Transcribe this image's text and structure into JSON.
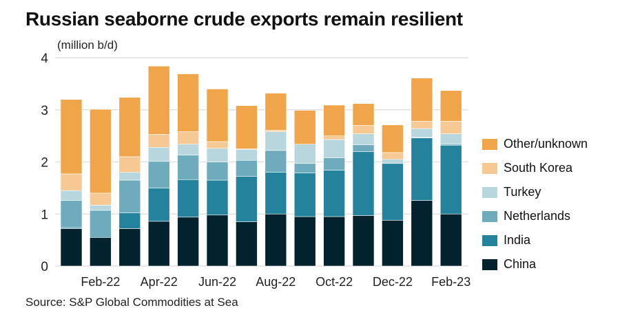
{
  "chart_data": {
    "type": "bar",
    "stacked": true,
    "title": "Russian seaborne crude exports remain resilient",
    "ylabel": "(million b/d)",
    "source": "Source: S&P Global Commodities at Sea",
    "ylim": [
      0,
      4
    ],
    "yticks": [
      "0",
      "1",
      "2",
      "3",
      "4"
    ],
    "categories": [
      "Jan-22",
      "Feb-22",
      "Mar-22",
      "Apr-22",
      "May-22",
      "Jun-22",
      "Jul-22",
      "Aug-22",
      "Sep-22",
      "Oct-22",
      "Nov-22",
      "Dec-22",
      "Jan-23",
      "Feb-23"
    ],
    "xtick_labels": {
      "1": "Feb-22",
      "3": "Apr-22",
      "5": "Jun-22",
      "7": "Aug-22",
      "9": "Oct-22",
      "11": "Dec-22",
      "13": "Feb-23"
    },
    "legend_position": "right",
    "series": [
      {
        "name": "China",
        "color": "#02232e",
        "values": [
          0.72,
          0.55,
          0.72,
          0.86,
          0.94,
          0.98,
          0.85,
          1.0,
          0.95,
          0.95,
          0.97,
          0.88,
          1.26,
          1.0
        ]
      },
      {
        "name": "India",
        "color": "#24829c",
        "values": [
          0.02,
          0.0,
          0.3,
          0.64,
          0.72,
          0.67,
          0.87,
          0.8,
          0.84,
          0.89,
          1.23,
          1.09,
          1.2,
          1.32
        ]
      },
      {
        "name": "Netherlands",
        "color": "#6eabbd",
        "values": [
          0.52,
          0.52,
          0.63,
          0.51,
          0.47,
          0.35,
          0.31,
          0.42,
          0.18,
          0.24,
          0.13,
          0.0,
          0.01,
          0.02
        ]
      },
      {
        "name": "Turkey",
        "color": "#b8d6de",
        "values": [
          0.19,
          0.1,
          0.15,
          0.27,
          0.21,
          0.26,
          0.21,
          0.36,
          0.37,
          0.35,
          0.21,
          0.08,
          0.17,
          0.2
        ]
      },
      {
        "name": "South Korea",
        "color": "#f6c893",
        "values": [
          0.32,
          0.23,
          0.3,
          0.25,
          0.24,
          0.13,
          0.01,
          0.03,
          0.0,
          0.07,
          0.16,
          0.13,
          0.14,
          0.24
        ]
      },
      {
        "name": "Other/unknown",
        "color": "#f0a54a",
        "values": [
          1.43,
          1.61,
          1.14,
          1.31,
          1.11,
          1.01,
          0.83,
          0.71,
          0.65,
          0.59,
          0.42,
          0.53,
          0.83,
          0.59
        ]
      }
    ]
  }
}
